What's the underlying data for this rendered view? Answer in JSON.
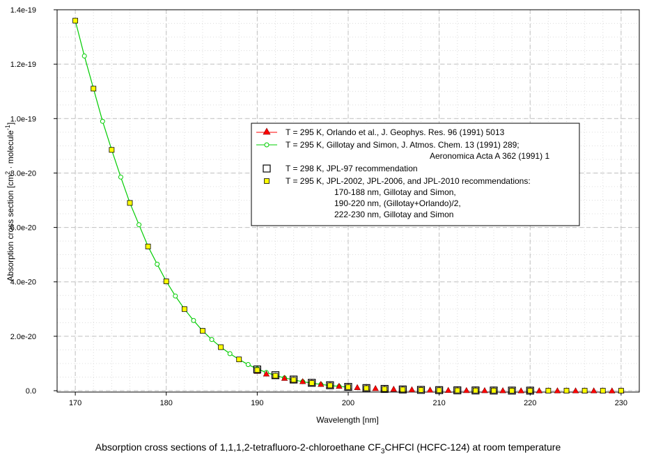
{
  "caption": {
    "pre": "Absorption cross sections of 1,1,1,2-tetrafluoro-2-chloroethane CF",
    "sub": "3",
    "post": "CHFCl (HCFC-124) at room temperature"
  },
  "colors": {
    "orlando": "#ff0000",
    "gillotay": "#00cc00",
    "jpl97": "#000000",
    "jpl2002_fill": "#ffff00"
  },
  "chart_data": {
    "type": "scatter",
    "xlabel": "Wavelength [nm]",
    "ylabel": {
      "pre": "Absorption cross section [cm",
      "sup1": "2",
      "mid": " · molecule",
      "sup2": "-1",
      "post": "]"
    },
    "xlim": [
      168,
      232
    ],
    "ylim": [
      -5e-22,
      1.4e-19
    ],
    "x_ticks": [
      "170",
      "180",
      "190",
      "200",
      "210",
      "220",
      "230"
    ],
    "y_ticks": [
      "0.0",
      "2.0e-20",
      "4.0e-20",
      "6.0e-20",
      "8.0e-20",
      "1.0e-19",
      "1.2e-19",
      "1.4e-19"
    ],
    "grid": true,
    "legend_position": "center-right",
    "series": [
      {
        "name": "T = 295 K, Orlando et al., J. Geophys. Res. 96 (1991) 5013",
        "marker": "triangle",
        "x": [
          190,
          191,
          192,
          193,
          194,
          195,
          196,
          197,
          198,
          199,
          200,
          201,
          202,
          203,
          204,
          205,
          206,
          207,
          208,
          209,
          210,
          211,
          212,
          213,
          214,
          215,
          216,
          217,
          218,
          219,
          220,
          221,
          222,
          223,
          224,
          225,
          226,
          227,
          228,
          229,
          230
        ],
        "y": [
          7.2e-21,
          6.2e-21,
          5.4e-21,
          4.6e-21,
          4e-21,
          3.4e-21,
          2.9e-21,
          2.4e-21,
          2e-21,
          1.7e-21,
          1.4e-21,
          1.2e-21,
          1e-21,
          8.5e-22,
          7e-22,
          6e-22,
          5e-22,
          4e-22,
          3.3e-22,
          2.7e-22,
          2.2e-22,
          1.8e-22,
          1.5e-22,
          1.2e-22,
          1e-22,
          8e-23,
          6.5e-23,
          5e-23,
          4e-23,
          3.2e-23,
          2.5e-23,
          2e-23,
          1.6e-23,
          1.3e-23,
          1e-23,
          8e-24,
          6.5e-24,
          5e-24,
          4e-24,
          3.2e-24,
          2.5e-24
        ]
      },
      {
        "name": "T = 295 K, Gillotay and Simon, J. Atmos. Chem. 13 (1991) 289;",
        "name_line2": "Aeronomica Acta A 362 (1991) 1",
        "marker": "circle-line",
        "x": [
          170,
          171,
          172,
          173,
          174,
          175,
          176,
          177,
          178,
          179,
          180,
          181,
          182,
          183,
          184,
          185,
          186,
          187,
          188,
          189,
          190,
          191,
          192,
          193,
          194,
          195,
          196,
          197,
          198,
          199,
          200
        ],
        "y": [
          1.36e-19,
          1.23e-19,
          1.11e-19,
          9.9e-20,
          8.85e-20,
          7.85e-20,
          6.9e-20,
          6.1e-20,
          5.3e-20,
          4.65e-20,
          4.02e-20,
          3.48e-20,
          3e-20,
          2.58e-20,
          2.2e-20,
          1.88e-20,
          1.6e-20,
          1.36e-20,
          1.15e-20,
          9.6e-21,
          8e-21,
          6.7e-21,
          5.6e-21,
          4.7e-21,
          4e-21,
          3.3e-21,
          2.8e-21,
          2.3e-21,
          1.9e-21,
          1.6e-21,
          1.3e-21
        ]
      },
      {
        "name": "T = 298 K, JPL-97 recommendation",
        "marker": "open-square",
        "x": [
          190,
          192,
          194,
          196,
          198,
          200,
          202,
          204,
          206,
          208,
          210,
          212,
          214,
          216,
          218,
          220
        ],
        "y": [
          7.8e-21,
          5.7e-21,
          4.1e-21,
          2.9e-21,
          2e-21,
          1.4e-21,
          9.5e-22,
          6.5e-22,
          4.5e-22,
          3e-22,
          2e-22,
          1.3e-22,
          9e-23,
          6e-23,
          4e-23,
          2.5e-23
        ]
      },
      {
        "name": "T = 295 K, JPL-2002, JPL-2006, and JPL-2010 recommendations:",
        "name_lines": [
          "170-188 nm, Gillotay and Simon,",
          "190-220 nm, (Gillotay+Orlando)/2,",
          "222-230 nm, Gillotay and Simon"
        ],
        "marker": "filled-square",
        "x": [
          170,
          172,
          174,
          176,
          178,
          180,
          182,
          184,
          186,
          188,
          190,
          192,
          194,
          196,
          198,
          200,
          202,
          204,
          206,
          208,
          210,
          212,
          214,
          216,
          218,
          220,
          222,
          224,
          226,
          228,
          230
        ],
        "y": [
          1.36e-19,
          1.11e-19,
          8.85e-20,
          6.9e-20,
          5.3e-20,
          4.02e-20,
          3e-20,
          2.2e-20,
          1.6e-20,
          1.15e-20,
          7.6e-21,
          5.5e-21,
          4e-21,
          2.85e-21,
          1.95e-21,
          1.35e-21,
          9.3e-22,
          6.3e-22,
          4.3e-22,
          2.9e-22,
          1.95e-22,
          1.3e-22,
          8.5e-23,
          5.8e-23,
          3.8e-23,
          2.5e-23,
          1.7e-23,
          1.1e-23,
          7.5e-24,
          5e-24,
          3.3e-24
        ]
      }
    ]
  }
}
